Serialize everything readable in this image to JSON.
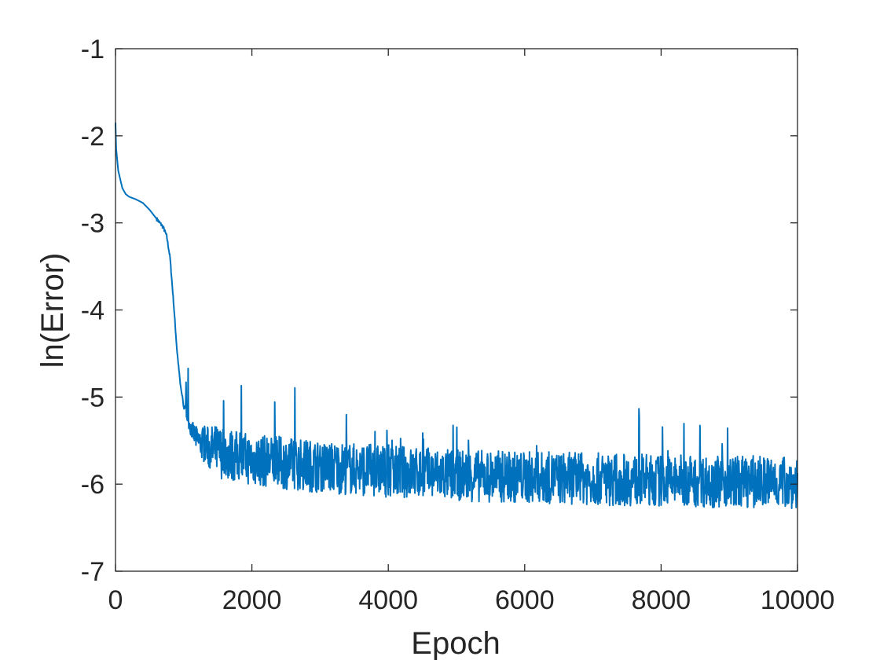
{
  "chart_data": {
    "type": "line",
    "title": "",
    "xlabel": "Epoch",
    "ylabel": "ln(Error)",
    "xlim": [
      0,
      10000
    ],
    "ylim": [
      -7,
      -1
    ],
    "xticks": [
      0,
      2000,
      4000,
      6000,
      8000,
      10000
    ],
    "yticks": [
      -7,
      -6,
      -5,
      -4,
      -3,
      -2,
      -1
    ],
    "xtick_labels": [
      "0",
      "2000",
      "4000",
      "6000",
      "8000",
      "10000"
    ],
    "ytick_labels": [
      "-7",
      "-6",
      "-5",
      "-4",
      "-3",
      "-2",
      "-1"
    ],
    "grid": false,
    "box": true,
    "line_color": "#0072BD",
    "series": [
      {
        "x": [
          0,
          10,
          40,
          100,
          150,
          200,
          300,
          400,
          500,
          600,
          700,
          750,
          800,
          850,
          900,
          950,
          1000,
          1100,
          1200,
          1400,
          1600,
          2000,
          3000,
          4000,
          5000,
          6000,
          7000,
          8000,
          9000,
          10000
        ],
        "y": [
          -1.85,
          -2.15,
          -2.4,
          -2.6,
          -2.67,
          -2.7,
          -2.73,
          -2.77,
          -2.85,
          -2.95,
          -3.05,
          -3.15,
          -3.4,
          -3.9,
          -4.45,
          -4.85,
          -5.1,
          -5.35,
          -5.5,
          -5.6,
          -5.65,
          -5.72,
          -5.8,
          -5.85,
          -5.9,
          -5.92,
          -5.94,
          -5.96,
          -5.97,
          -5.98
        ],
        "noise": {
          "start_epoch": 950,
          "amplitude": 0.3,
          "spike_probability": 0.02,
          "max_spike": 0.65,
          "floor": -6.65,
          "step": 5,
          "seed": 7
        }
      }
    ]
  }
}
